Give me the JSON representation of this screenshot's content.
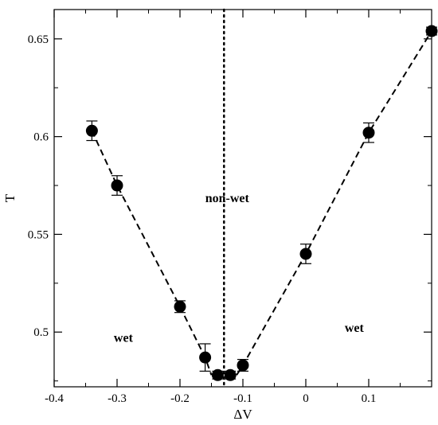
{
  "chart_data": {
    "type": "scatter",
    "title": "",
    "xlabel": "ΔV",
    "ylabel": "T",
    "xlim": [
      -0.4,
      0.2
    ],
    "ylim": [
      0.472,
      0.665
    ],
    "grid": false,
    "x_ticks": [
      {
        "value": -0.4,
        "label": "-0.4"
      },
      {
        "value": -0.3,
        "label": "-0.3"
      },
      {
        "value": -0.2,
        "label": "-0.2"
      },
      {
        "value": -0.1,
        "label": "-0.1"
      },
      {
        "value": 0.0,
        "label": "0"
      },
      {
        "value": 0.1,
        "label": "0.1"
      }
    ],
    "y_ticks": [
      {
        "value": 0.5,
        "label": "0.5"
      },
      {
        "value": 0.55,
        "label": "0.55"
      },
      {
        "value": 0.6,
        "label": "0.6"
      },
      {
        "value": 0.65,
        "label": "0.65"
      }
    ],
    "points": [
      {
        "x": -0.34,
        "y": 0.603,
        "err": 0.005
      },
      {
        "x": -0.3,
        "y": 0.575,
        "err": 0.005
      },
      {
        "x": -0.2,
        "y": 0.513,
        "err": 0.003
      },
      {
        "x": -0.16,
        "y": 0.487,
        "err": 0.007
      },
      {
        "x": -0.14,
        "y": 0.478,
        "err": 0.002
      },
      {
        "x": -0.12,
        "y": 0.478,
        "err": 0.002
      },
      {
        "x": -0.1,
        "y": 0.483,
        "err": 0.003
      },
      {
        "x": 0.0,
        "y": 0.54,
        "err": 0.005
      },
      {
        "x": 0.1,
        "y": 0.602,
        "err": 0.005
      },
      {
        "x": 0.2,
        "y": 0.654,
        "err": 0.002
      }
    ],
    "left_line": [
      [
        -0.34,
        0.603
      ],
      [
        -0.3,
        0.575
      ],
      [
        -0.2,
        0.513
      ],
      [
        -0.16,
        0.487
      ],
      [
        -0.15,
        0.478
      ]
    ],
    "right_line": [
      [
        -0.11,
        0.478
      ],
      [
        -0.1,
        0.483
      ],
      [
        0.0,
        0.54
      ],
      [
        0.1,
        0.602
      ],
      [
        0.2,
        0.654
      ]
    ],
    "vertical_line_x": -0.13,
    "annotations": [
      {
        "text": "non-wet",
        "x": -0.125,
        "y": 0.5665
      },
      {
        "text": "wet",
        "x": -0.29,
        "y": 0.495
      },
      {
        "text": "wet",
        "x": 0.077,
        "y": 0.5
      },
      {
        "text": "",
        "x": 0,
        "y": 0
      }
    ]
  }
}
